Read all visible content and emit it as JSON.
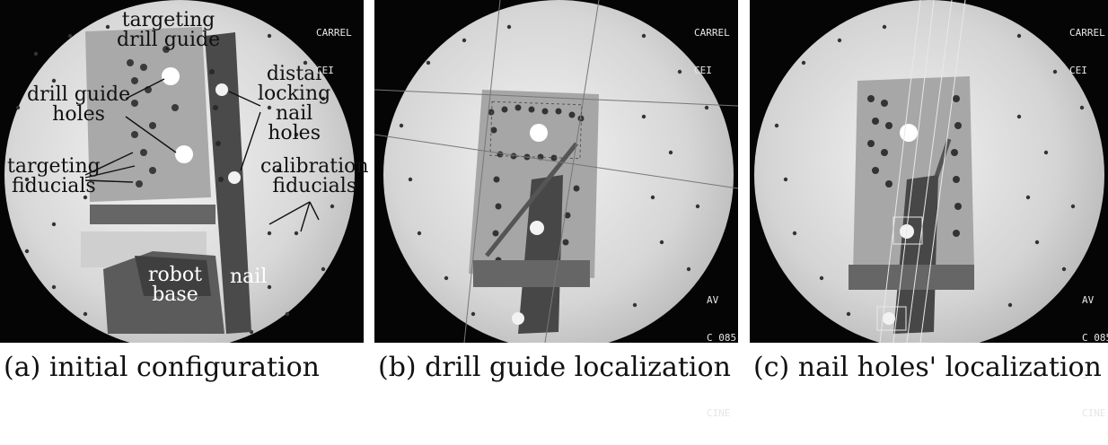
{
  "panels": [
    {
      "caption": "(a) initial configuration",
      "annotations": {
        "targeting_drill_guide": [
          "targeting",
          "drill guide"
        ],
        "drill_guide_holes": [
          "drill guide",
          "holes"
        ],
        "targeting_fiducials": [
          "targeting",
          "fiducials"
        ],
        "distal_locking_nail_holes": [
          "distal",
          "locking",
          "nail",
          "holes"
        ],
        "calibration_fiducials": [
          "calibration",
          "fiducials"
        ],
        "robot_base": [
          "robot",
          "base"
        ],
        "nail": "nail"
      }
    },
    {
      "caption": "(b) drill guide localization"
    },
    {
      "caption": "(c) nail holes' localization"
    }
  ],
  "overlay_text": {
    "top_right": [
      "CARREL",
      "CEI"
    ],
    "bottom_right": [
      "AV",
      "C 085",
      "3",
      "CINE"
    ]
  }
}
